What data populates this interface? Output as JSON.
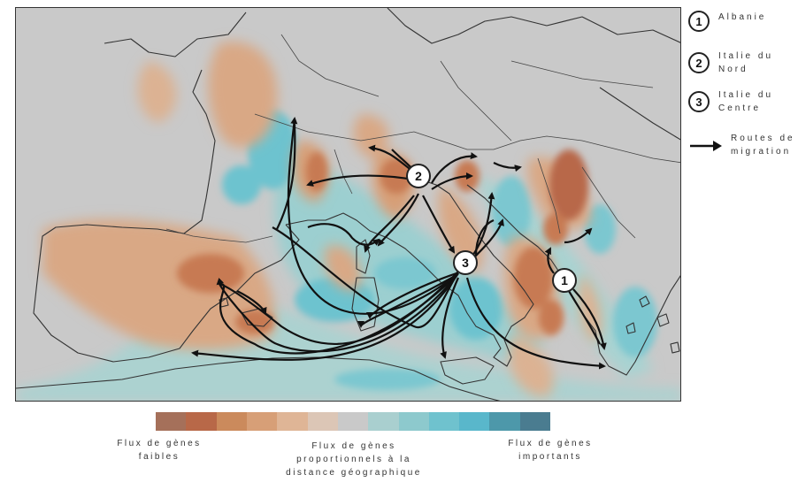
{
  "legend": {
    "items": [
      {
        "number": "1",
        "label": "Albanie"
      },
      {
        "number": "2",
        "label": "Italie du Nord"
      },
      {
        "number": "3",
        "label": "Italie du Centre"
      }
    ],
    "routes_label": "Routes de migration"
  },
  "map_markers": [
    {
      "number": "1",
      "name": "Albanie"
    },
    {
      "number": "2",
      "name": "Italie du Nord"
    },
    {
      "number": "3",
      "name": "Italie du Centre"
    }
  ],
  "colorbar": {
    "colors": [
      "#a5705a",
      "#b86848",
      "#cb8a5c",
      "#d79f77",
      "#dfb596",
      "#dcc6b6",
      "#c9c9c9",
      "#a9cfcf",
      "#8dc9cd",
      "#6fc2ce",
      "#59b7cb",
      "#4d98aa",
      "#4a7c90"
    ],
    "label_low": "Flux de gènes faibles",
    "label_mid": "Flux de gènes proportionnels à la distance géographique",
    "label_high": "Flux de gènes importants"
  },
  "colors": {
    "land_neutral": "#c9c9c9",
    "low_flow": "#d9a885",
    "very_low_flow": "#c77a52",
    "high_flow": "#6dc3cf",
    "medium_high_flow": "#a9d3d2",
    "border": "#333333"
  }
}
